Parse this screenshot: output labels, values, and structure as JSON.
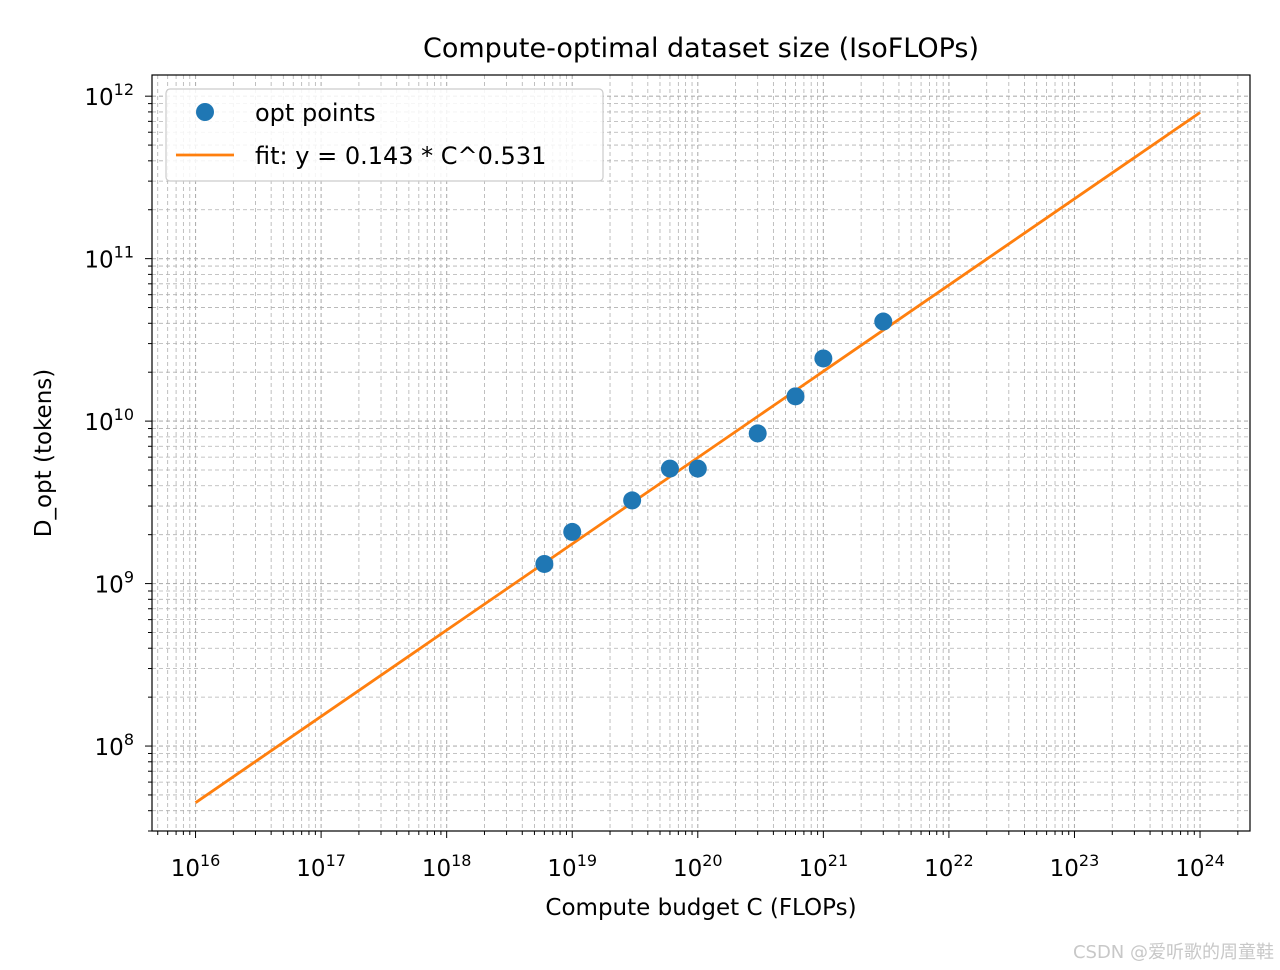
{
  "chart_data": {
    "type": "scatter",
    "title": "Compute-optimal dataset size (IsoFLOPs)",
    "xlabel": "Compute budget C (FLOPs)",
    "ylabel": "D_opt (tokens)",
    "xscale": "log",
    "yscale": "log",
    "xlim": [
      4500000000000000.0,
      2.5e+24
    ],
    "ylim": [
      30000000.0,
      1350000000000.0
    ],
    "xticks": [
      {
        "base": "10",
        "exp": "16",
        "value": 1e+16
      },
      {
        "base": "10",
        "exp": "17",
        "value": 1e+17
      },
      {
        "base": "10",
        "exp": "18",
        "value": 1e+18
      },
      {
        "base": "10",
        "exp": "19",
        "value": 1e+19
      },
      {
        "base": "10",
        "exp": "20",
        "value": 1e+20
      },
      {
        "base": "10",
        "exp": "21",
        "value": 1e+21
      },
      {
        "base": "10",
        "exp": "22",
        "value": 1e+22
      },
      {
        "base": "10",
        "exp": "23",
        "value": 1e+23
      },
      {
        "base": "10",
        "exp": "24",
        "value": 1e+24
      }
    ],
    "yticks": [
      {
        "base": "10",
        "exp": "8",
        "value": 100000000.0
      },
      {
        "base": "10",
        "exp": "9",
        "value": 1000000000.0
      },
      {
        "base": "10",
        "exp": "10",
        "value": 10000000000.0
      },
      {
        "base": "10",
        "exp": "11",
        "value": 100000000000.0
      },
      {
        "base": "10",
        "exp": "12",
        "value": 1000000000000.0
      }
    ],
    "grid": "both (major and minor), dashed",
    "legend_position": "top-left",
    "series": [
      {
        "name": "opt points",
        "kind": "scatter",
        "color": "#1f77b4",
        "points": [
          {
            "x": 6e+18,
            "y": 1320000000.0
          },
          {
            "x": 1e+19,
            "y": 2080000000.0
          },
          {
            "x": 3e+19,
            "y": 3250000000.0
          },
          {
            "x": 6e+19,
            "y": 5100000000.0
          },
          {
            "x": 1e+20,
            "y": 5100000000.0
          },
          {
            "x": 3e+20,
            "y": 8400000000.0
          },
          {
            "x": 6e+20,
            "y": 14200000000.0
          },
          {
            "x": 1e+21,
            "y": 24300000000.0
          },
          {
            "x": 3e+21,
            "y": 41000000000.0
          }
        ]
      },
      {
        "name": "fit: y = 0.143 * C^0.531",
        "kind": "line",
        "color": "#ff7f0e",
        "coef": 0.143,
        "exponent": 0.531,
        "x_range": [
          1e+16,
          1e+24
        ]
      }
    ]
  },
  "watermark": "CSDN @爱听歌的周童鞋"
}
